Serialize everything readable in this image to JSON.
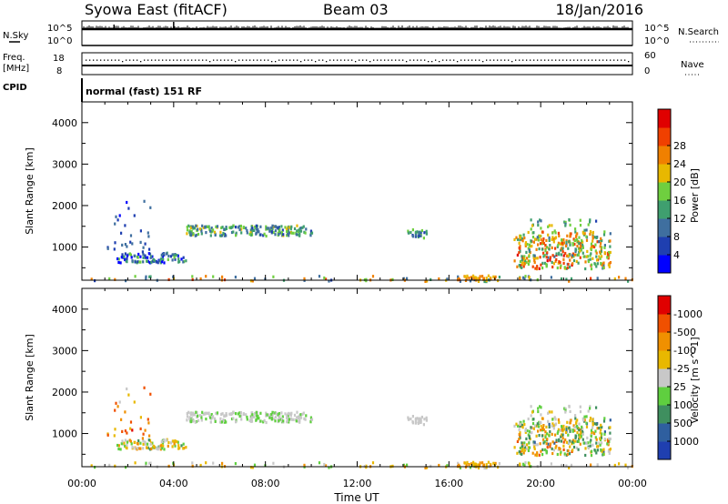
{
  "header": {
    "title": "Syowa East (fitACF)",
    "beam": "Beam 03",
    "date": "18/Jan/2016",
    "mode": "normal (fast) 151 RF"
  },
  "status_panels": {
    "nsky_label": "N.Sky",
    "nsearch_label": "N.Search",
    "nsky_ticks": [
      "10^5",
      "10^0"
    ],
    "nsearch_ticks": [
      "10^5",
      "10^0"
    ],
    "freq_label_top": "Freq.",
    "freq_label_bottom": "[MHz]",
    "freq_ticks": [
      "18",
      "8"
    ],
    "nave_label": "Nave",
    "nave_ticks": [
      "60",
      "0"
    ],
    "cpid_label": "CPID"
  },
  "chart_data": [
    {
      "type": "heatmap",
      "panel": "power",
      "ylabel": "Slant Range [km]",
      "ylim": [
        200,
        4500
      ],
      "yticks": [
        1000,
        2000,
        3000,
        4000
      ],
      "xlim": [
        0,
        24
      ],
      "colorbar_label": "Power [dB]",
      "colorbar_ticks": [
        "4",
        "8",
        "12",
        "16",
        "20",
        "24",
        "28"
      ],
      "colorbar_colors": [
        "#0000ff",
        "#1f3fb0",
        "#3f6f9f",
        "#3f9f6f",
        "#6fcf3f",
        "#e8b800",
        "#f08000",
        "#f04000",
        "#e00000"
      ],
      "blobs": [
        {
          "t": [
            4.5,
            10.0
          ],
          "r": [
            1300,
            1550
          ],
          "d": 0.55,
          "c": [
            0.2,
            0.6
          ]
        },
        {
          "t": [
            1.5,
            4.5
          ],
          "r": [
            650,
            900
          ],
          "d": 0.45,
          "c": [
            0.0,
            0.5
          ]
        },
        {
          "t": [
            14.0,
            15.0
          ],
          "r": [
            1250,
            1450
          ],
          "d": 0.5,
          "c": [
            0.1,
            0.5
          ]
        },
        {
          "t": [
            18.8,
            23.0
          ],
          "r": [
            500,
            1400
          ],
          "d": 0.35,
          "c": [
            0.3,
            0.9
          ]
        },
        {
          "t": [
            19.5,
            22.5
          ],
          "r": [
            1400,
            1700
          ],
          "d": 0.12,
          "c": [
            0.2,
            0.6
          ]
        },
        {
          "t": [
            0.0,
            24.0
          ],
          "r": [
            200,
            330
          ],
          "d": 0.1,
          "c": [
            0.2,
            0.8
          ]
        },
        {
          "t": [
            16.3,
            18.0
          ],
          "r": [
            200,
            340
          ],
          "d": 0.45,
          "c": [
            0.6,
            0.8
          ]
        },
        {
          "t": [
            1.0,
            3.0
          ],
          "r": [
            900,
            2200
          ],
          "d": 0.04,
          "c": [
            0.1,
            0.3
          ]
        }
      ]
    },
    {
      "type": "heatmap",
      "panel": "velocity",
      "ylabel": "Slant Range [km]",
      "ylim": [
        200,
        4500
      ],
      "yticks": [
        1000,
        2000,
        3000,
        4000
      ],
      "xlim": [
        0,
        24
      ],
      "xticks": [
        "00:00",
        "04:00",
        "08:00",
        "12:00",
        "16:00",
        "20:00",
        "00:00"
      ],
      "xlabel": "Time UT",
      "colorbar_label": "Velocity [m s^-1]",
      "colorbar_ticks": [
        "1000",
        "500",
        "100",
        "25",
        "-25",
        "-100",
        "-500",
        "-1000"
      ],
      "colorbar_colors": [
        "#1f3fb0",
        "#2f5f9f",
        "#3f8f5f",
        "#5fcf3f",
        "#c8c8c8",
        "#e8b800",
        "#f09000",
        "#f05000",
        "#e00000"
      ],
      "blobs": [
        {
          "t": [
            4.5,
            10.0
          ],
          "r": [
            1300,
            1550
          ],
          "d": 0.55,
          "c": [
            0.4,
            0.55
          ]
        },
        {
          "t": [
            1.5,
            4.5
          ],
          "r": [
            650,
            900
          ],
          "d": 0.45,
          "c": [
            0.3,
            0.75
          ]
        },
        {
          "t": [
            14.0,
            15.0
          ],
          "r": [
            1250,
            1450
          ],
          "d": 0.5,
          "c": [
            0.45,
            0.55
          ]
        },
        {
          "t": [
            18.8,
            23.0
          ],
          "r": [
            500,
            1400
          ],
          "d": 0.35,
          "c": [
            0.2,
            0.8
          ]
        },
        {
          "t": [
            19.5,
            22.5
          ],
          "r": [
            1400,
            1700
          ],
          "d": 0.12,
          "c": [
            0.3,
            0.6
          ]
        },
        {
          "t": [
            0.0,
            24.0
          ],
          "r": [
            200,
            330
          ],
          "d": 0.1,
          "c": [
            0.4,
            0.7
          ]
        },
        {
          "t": [
            16.3,
            18.0
          ],
          "r": [
            200,
            340
          ],
          "d": 0.45,
          "c": [
            0.6,
            0.75
          ]
        },
        {
          "t": [
            1.0,
            3.0
          ],
          "r": [
            900,
            2200
          ],
          "d": 0.04,
          "c": [
            0.5,
            0.9
          ]
        }
      ]
    }
  ]
}
